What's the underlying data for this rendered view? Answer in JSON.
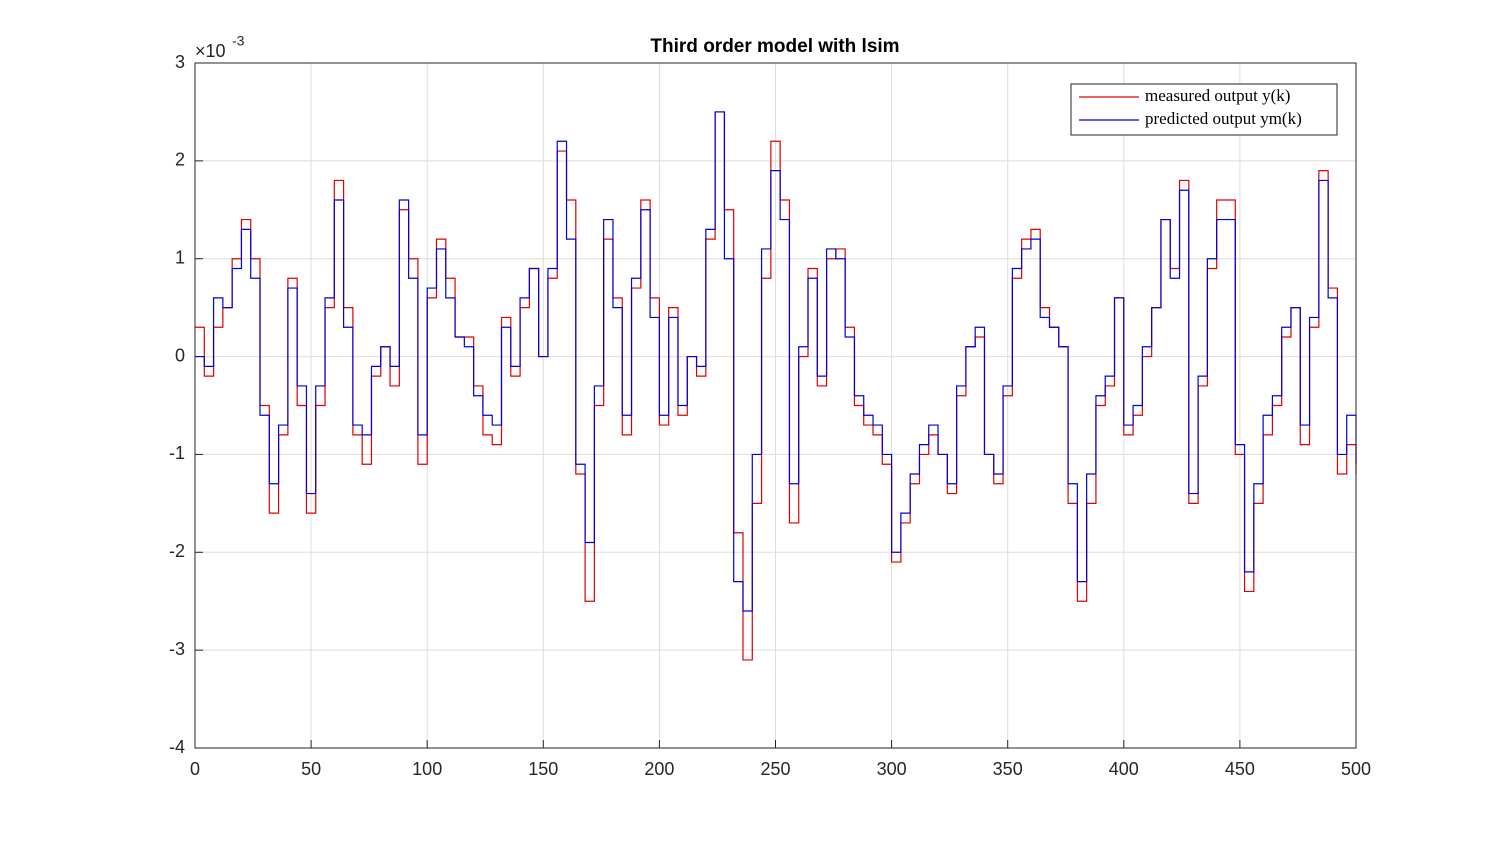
{
  "chart_data": {
    "type": "stairs",
    "title": "Third order model with lsim",
    "y_multiplier": "×10",
    "y_multiplier_exponent": "-3",
    "x": [
      0,
      4,
      8,
      12,
      16,
      20,
      24,
      28,
      32,
      36,
      40,
      44,
      48,
      52,
      56,
      60,
      64,
      68,
      72,
      76,
      80,
      84,
      88,
      92,
      96,
      100,
      104,
      108,
      112,
      116,
      120,
      124,
      128,
      132,
      136,
      140,
      144,
      148,
      152,
      156,
      160,
      164,
      168,
      172,
      176,
      180,
      184,
      188,
      192,
      196,
      200,
      204,
      208,
      212,
      216,
      220,
      224,
      228,
      232,
      236,
      240,
      244,
      248,
      252,
      256,
      260,
      264,
      268,
      272,
      276,
      280,
      284,
      288,
      292,
      296,
      300,
      304,
      308,
      312,
      316,
      320,
      324,
      328,
      332,
      336,
      340,
      344,
      348,
      352,
      356,
      360,
      364,
      368,
      372,
      376,
      380,
      384,
      388,
      392,
      396,
      400,
      404,
      408,
      412,
      416,
      420,
      424,
      428,
      432,
      436,
      440,
      444,
      448,
      452,
      456,
      460,
      464,
      468,
      472,
      476,
      480,
      484,
      488,
      492,
      496,
      500
    ],
    "series": [
      {
        "name": "measured output y(k)",
        "color": "#e00000",
        "values": [
          0.3,
          -0.2,
          0.3,
          0.5,
          1.0,
          1.4,
          1.0,
          -0.5,
          -1.6,
          -0.8,
          0.8,
          -0.5,
          -1.6,
          -0.5,
          0.5,
          1.8,
          0.5,
          -0.8,
          -1.1,
          -0.2,
          0.1,
          -0.3,
          1.5,
          1.0,
          -1.1,
          0.6,
          1.2,
          0.8,
          0.2,
          0.2,
          -0.3,
          -0.8,
          -0.9,
          0.4,
          -0.2,
          0.5,
          0.9,
          0.0,
          0.8,
          2.1,
          1.6,
          -1.2,
          -2.5,
          -0.5,
          1.2,
          0.6,
          -0.8,
          0.7,
          1.6,
          0.6,
          -0.7,
          0.5,
          -0.6,
          0.0,
          -0.2,
          1.2,
          2.5,
          1.5,
          -1.8,
          -3.1,
          -1.5,
          0.8,
          2.2,
          1.6,
          -1.7,
          0.0,
          0.9,
          -0.3,
          1.0,
          1.1,
          0.3,
          -0.5,
          -0.7,
          -0.8,
          -1.1,
          -2.1,
          -1.7,
          -1.3,
          -1.0,
          -0.8,
          -1.0,
          -1.4,
          -0.4,
          0.1,
          0.2,
          -1.0,
          -1.3,
          -0.4,
          0.8,
          1.2,
          1.3,
          0.5,
          0.3,
          0.1,
          -1.5,
          -2.5,
          -1.5,
          -0.5,
          -0.3,
          0.6,
          -0.8,
          -0.6,
          0.0,
          0.5,
          1.4,
          0.9,
          1.8,
          -1.5,
          -0.3,
          0.9,
          1.6,
          1.6,
          -1.0,
          -2.4,
          -1.5,
          -0.8,
          -0.5,
          0.2,
          0.5,
          -0.9,
          0.3,
          1.9,
          0.7,
          -1.2,
          -0.9,
          -1.2
        ]
      },
      {
        "name": "predicted output ym(k)",
        "color": "#0000e0",
        "values": [
          0.0,
          -0.1,
          0.6,
          0.5,
          0.9,
          1.3,
          0.8,
          -0.6,
          -1.3,
          -0.7,
          0.7,
          -0.3,
          -1.4,
          -0.3,
          0.6,
          1.6,
          0.3,
          -0.7,
          -0.8,
          -0.1,
          0.1,
          -0.1,
          1.6,
          0.8,
          -0.8,
          0.7,
          1.1,
          0.6,
          0.2,
          0.1,
          -0.4,
          -0.6,
          -0.7,
          0.3,
          -0.1,
          0.6,
          0.9,
          0.0,
          0.9,
          2.2,
          1.2,
          -1.1,
          -1.9,
          -0.3,
          1.4,
          0.5,
          -0.6,
          0.8,
          1.5,
          0.4,
          -0.6,
          0.4,
          -0.5,
          0.0,
          -0.1,
          1.3,
          2.5,
          1.0,
          -2.3,
          -2.6,
          -1.0,
          1.1,
          1.9,
          1.4,
          -1.3,
          0.1,
          0.8,
          -0.2,
          1.1,
          1.0,
          0.2,
          -0.4,
          -0.6,
          -0.7,
          -1.0,
          -2.0,
          -1.6,
          -1.2,
          -0.9,
          -0.7,
          -1.0,
          -1.3,
          -0.3,
          0.1,
          0.3,
          -1.0,
          -1.2,
          -0.3,
          0.9,
          1.1,
          1.2,
          0.4,
          0.3,
          0.1,
          -1.3,
          -2.3,
          -1.2,
          -0.4,
          -0.2,
          0.6,
          -0.7,
          -0.5,
          0.1,
          0.5,
          1.4,
          0.8,
          1.7,
          -1.4,
          -0.2,
          1.0,
          1.4,
          1.4,
          -0.9,
          -2.2,
          -1.3,
          -0.6,
          -0.4,
          0.3,
          0.5,
          -0.7,
          0.4,
          1.8,
          0.6,
          -1.0,
          -0.6,
          -1.1
        ]
      }
    ],
    "xlim": [
      0,
      500
    ],
    "xticks": [
      0,
      50,
      100,
      150,
      200,
      250,
      300,
      350,
      400,
      450,
      500
    ],
    "ylim": [
      -4,
      3
    ],
    "yticks": [
      -4,
      -3,
      -2,
      -1,
      0,
      1,
      2,
      3
    ],
    "grid": true,
    "legend": "upper-right"
  }
}
